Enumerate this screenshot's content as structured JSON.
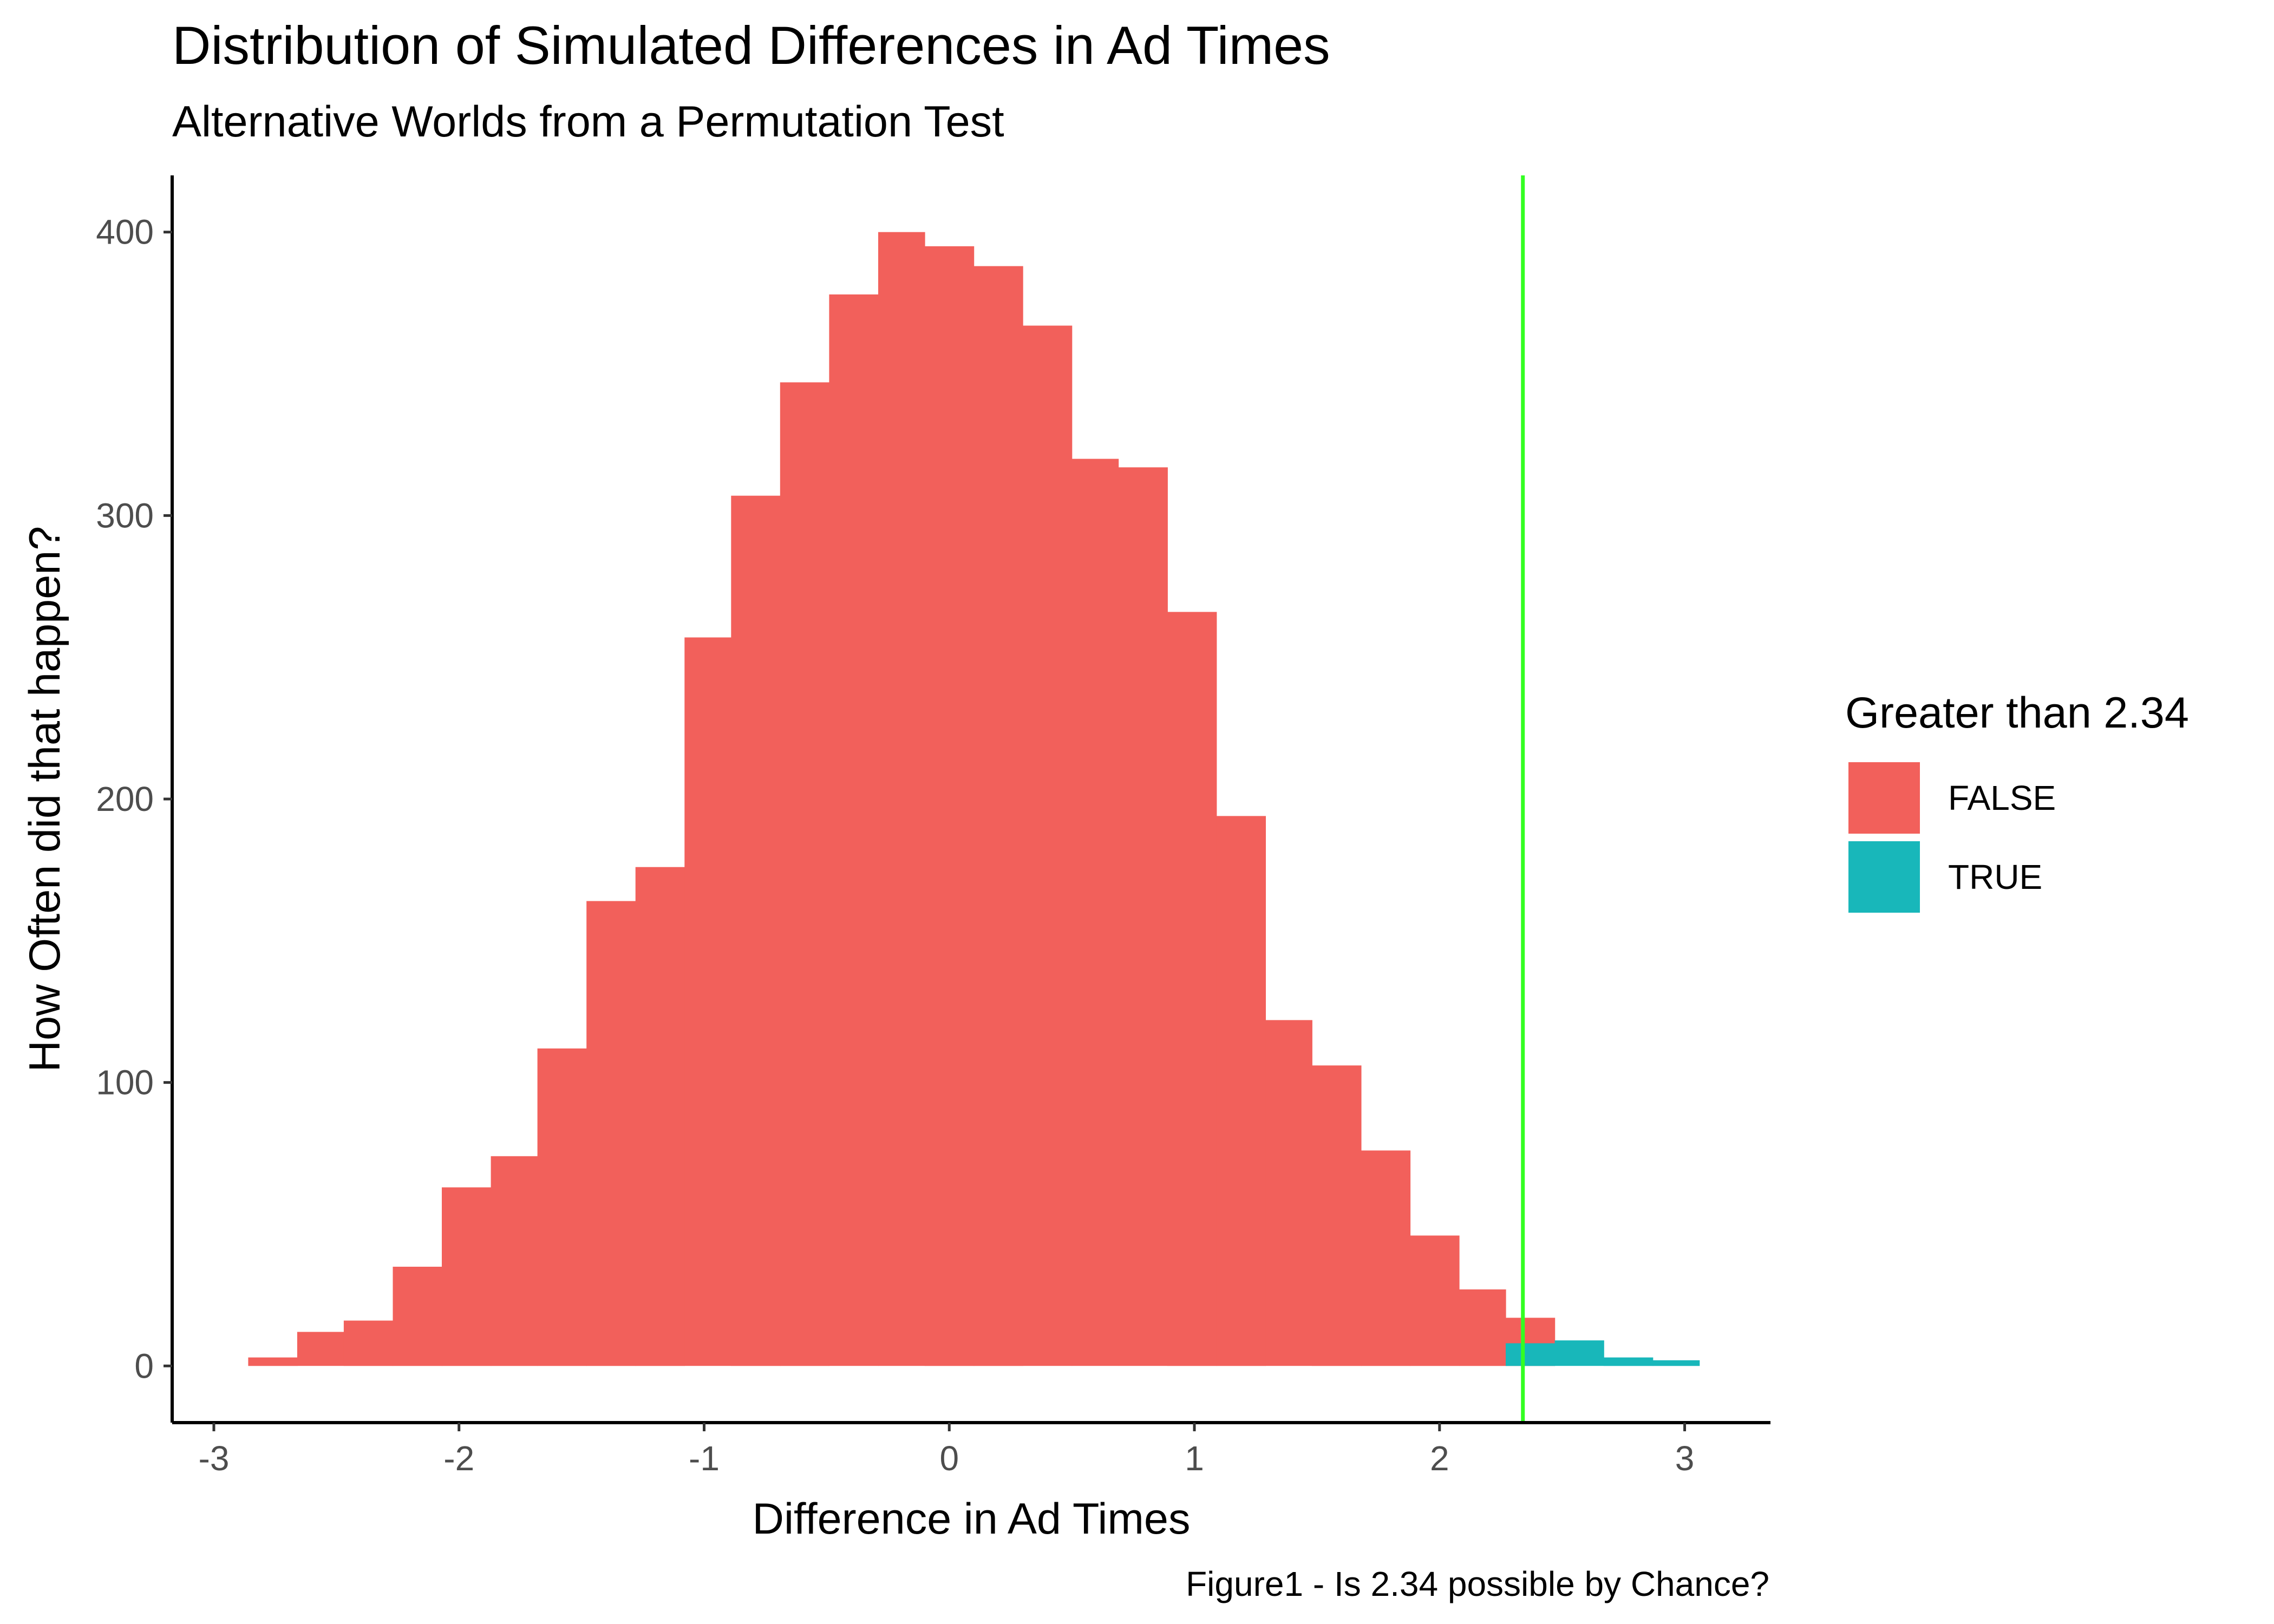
{
  "chart_data": {
    "type": "bar",
    "title": "Distribution of Simulated Differences in Ad Times",
    "subtitle": "Alternative Worlds from a Permutation Test",
    "xlabel": "Difference in Ad Times",
    "ylabel": "How Often did that happen?",
    "caption": "Figure1 - Is 2.34 possible by Chance?",
    "xlim": [
      -3.17,
      3.35
    ],
    "ylim": [
      -20,
      420
    ],
    "x_ticks": [
      -3,
      -2,
      -1,
      0,
      1,
      2,
      3
    ],
    "x_tick_labels": [
      "-3",
      "-2",
      "-1",
      "0",
      "1",
      "2",
      "3"
    ],
    "y_ticks": [
      0,
      100,
      200,
      300,
      400
    ],
    "y_tick_labels": [
      "0",
      "100",
      "200",
      "300",
      "400"
    ],
    "grid": false,
    "legend": {
      "title": "Greater than 2.34",
      "position": "right",
      "entries": [
        {
          "label": "FALSE",
          "color": "#F2605B"
        },
        {
          "label": "TRUE",
          "color": "#18B7BA"
        }
      ]
    },
    "reference_line": {
      "x": 2.34,
      "color": "#33FF22"
    },
    "bin_width": 0.198,
    "series": [
      {
        "name": "FALSE",
        "color": "#F2605B",
        "bins": [
          {
            "x0": -2.86,
            "x1": -2.66,
            "count": 3
          },
          {
            "x0": -2.66,
            "x1": -2.47,
            "count": 12
          },
          {
            "x0": -2.47,
            "x1": -2.27,
            "count": 16
          },
          {
            "x0": -2.27,
            "x1": -2.07,
            "count": 35
          },
          {
            "x0": -2.07,
            "x1": -1.87,
            "count": 63
          },
          {
            "x0": -1.87,
            "x1": -1.68,
            "count": 74
          },
          {
            "x0": -1.68,
            "x1": -1.48,
            "count": 112
          },
          {
            "x0": -1.48,
            "x1": -1.28,
            "count": 164
          },
          {
            "x0": -1.28,
            "x1": -1.08,
            "count": 176
          },
          {
            "x0": -1.08,
            "x1": -0.89,
            "count": 257
          },
          {
            "x0": -0.89,
            "x1": -0.69,
            "count": 307
          },
          {
            "x0": -0.69,
            "x1": -0.49,
            "count": 347
          },
          {
            "x0": -0.49,
            "x1": -0.29,
            "count": 378
          },
          {
            "x0": -0.29,
            "x1": -0.1,
            "count": 400
          },
          {
            "x0": -0.1,
            "x1": 0.1,
            "count": 395
          },
          {
            "x0": 0.1,
            "x1": 0.3,
            "count": 388
          },
          {
            "x0": 0.3,
            "x1": 0.5,
            "count": 367
          },
          {
            "x0": 0.5,
            "x1": 0.69,
            "count": 320
          },
          {
            "x0": 0.69,
            "x1": 0.89,
            "count": 317
          },
          {
            "x0": 0.89,
            "x1": 1.09,
            "count": 266
          },
          {
            "x0": 1.09,
            "x1": 1.29,
            "count": 194
          },
          {
            "x0": 1.29,
            "x1": 1.48,
            "count": 122
          },
          {
            "x0": 1.48,
            "x1": 1.68,
            "count": 106
          },
          {
            "x0": 1.68,
            "x1": 1.88,
            "count": 76
          },
          {
            "x0": 1.88,
            "x1": 2.08,
            "count": 46
          },
          {
            "x0": 2.08,
            "x1": 2.27,
            "count": 27
          },
          {
            "x0": 2.27,
            "x1": 2.47,
            "count": 17
          }
        ]
      },
      {
        "name": "TRUE",
        "color": "#18B7BA",
        "bins": [
          {
            "x0": 2.27,
            "x1": 2.47,
            "count": 8
          },
          {
            "x0": 2.47,
            "x1": 2.67,
            "count": 9
          },
          {
            "x0": 2.67,
            "x1": 2.87,
            "count": 3
          },
          {
            "x0": 2.87,
            "x1": 3.06,
            "count": 2
          }
        ]
      }
    ]
  }
}
